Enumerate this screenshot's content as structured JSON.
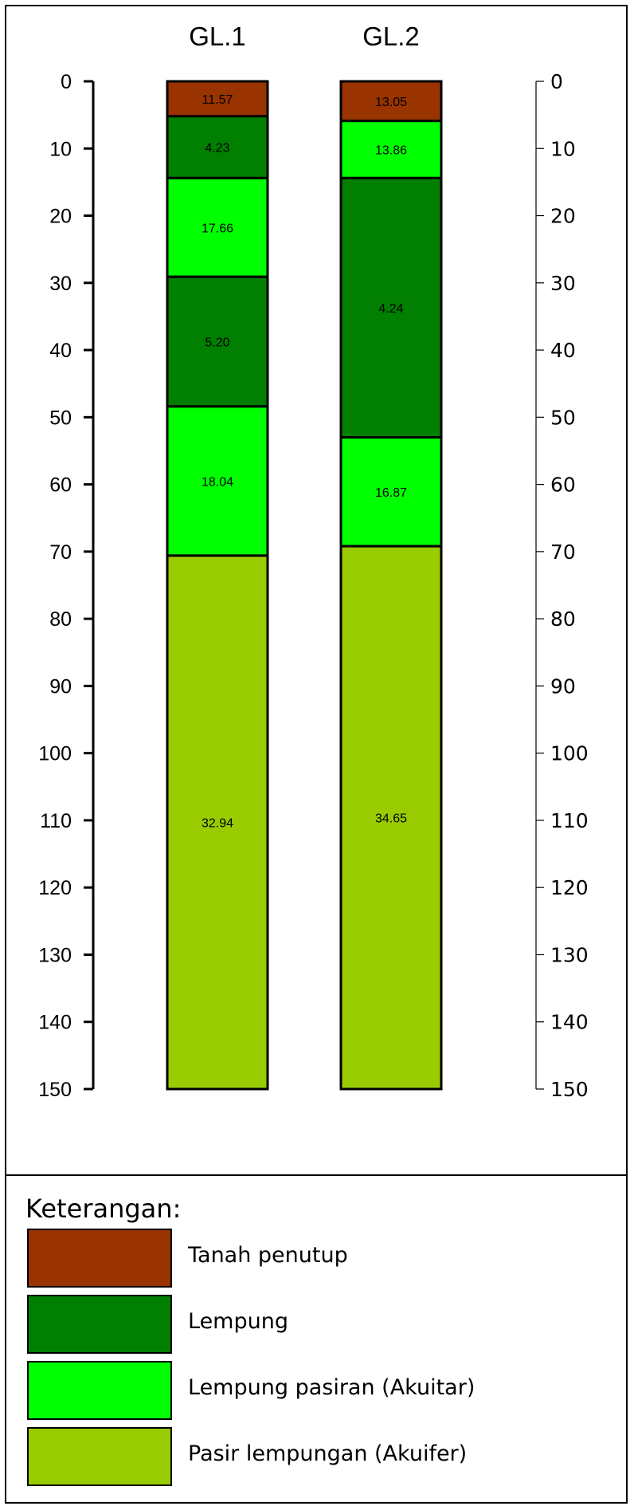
{
  "colors": {
    "tanah_penutup": "#993300",
    "lempung": "#007F00",
    "lempung_pasiran": "#00FF00",
    "pasir_lempungan": "#99CC00"
  },
  "chart_data": {
    "type": "stratigraphic-column",
    "depth_range": [
      0,
      150
    ],
    "depth_ticks": [
      0,
      10,
      20,
      30,
      40,
      50,
      60,
      70,
      80,
      90,
      100,
      110,
      120,
      130,
      140,
      150
    ],
    "columns": [
      {
        "name": "GL.1",
        "layers": [
          {
            "top": 0,
            "bottom": 5.2,
            "material": "tanah_penutup",
            "label": "11.57"
          },
          {
            "top": 5.2,
            "bottom": 14.4,
            "material": "lempung",
            "label": "4.23"
          },
          {
            "top": 14.4,
            "bottom": 29.1,
            "material": "lempung_pasiran",
            "label": "17.66"
          },
          {
            "top": 29.1,
            "bottom": 48.4,
            "material": "lempung",
            "label": "5.20"
          },
          {
            "top": 48.4,
            "bottom": 70.6,
            "material": "lempung_pasiran",
            "label": "18.04"
          },
          {
            "top": 70.6,
            "bottom": 150,
            "material": "pasir_lempungan",
            "label": "32.94"
          }
        ]
      },
      {
        "name": "GL.2",
        "layers": [
          {
            "top": 0,
            "bottom": 5.9,
            "material": "tanah_penutup",
            "label": "13.05"
          },
          {
            "top": 5.9,
            "bottom": 14.4,
            "material": "lempung_pasiran",
            "label": "13.86"
          },
          {
            "top": 14.4,
            "bottom": 53.0,
            "material": "lempung",
            "label": "4.24"
          },
          {
            "top": 53.0,
            "bottom": 69.2,
            "material": "lempung_pasiran",
            "label": "16.87"
          },
          {
            "top": 69.2,
            "bottom": 150,
            "material": "pasir_lempungan",
            "label": "34.65"
          }
        ]
      }
    ]
  },
  "legend": {
    "title": "Keterangan:",
    "items": [
      {
        "material": "tanah_penutup",
        "label": "Tanah penutup"
      },
      {
        "material": "lempung",
        "label": "Lempung"
      },
      {
        "material": "lempung_pasiran",
        "label": "Lempung pasiran (Akuitar)"
      },
      {
        "material": "pasir_lempungan",
        "label": "Pasir lempungan (Akuifer)"
      }
    ]
  }
}
